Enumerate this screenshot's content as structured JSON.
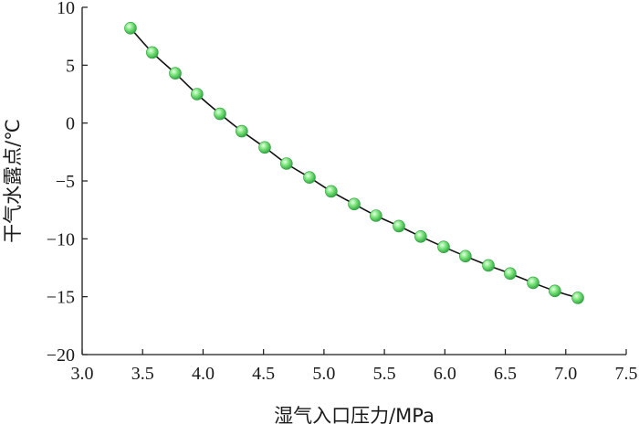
{
  "chart_data": {
    "type": "line",
    "title": "",
    "xlabel": "湿气入口压力/MPa",
    "ylabel": "干气水露点/℃",
    "xlim": [
      3.0,
      7.5
    ],
    "ylim": [
      -20,
      10
    ],
    "xticks": [
      "3.0",
      "3.5",
      "4.0",
      "4.5",
      "5.0",
      "5.5",
      "6.0",
      "6.5",
      "7.0",
      "7.5"
    ],
    "yticks": [
      "10",
      "5",
      "0",
      "−5",
      "−10",
      "−15",
      "−20"
    ],
    "grid": false,
    "marker_color": "#7ee67e",
    "line_color": "#111111",
    "series": [
      {
        "x": [
          3.4,
          3.58,
          3.77,
          3.95,
          4.14,
          4.32,
          4.51,
          4.69,
          4.88,
          5.06,
          5.25,
          5.43,
          5.62,
          5.8,
          5.99,
          6.17,
          6.36,
          6.54,
          6.73,
          6.91,
          7.1
        ],
        "y": [
          8.2,
          6.1,
          4.3,
          2.5,
          0.8,
          -0.7,
          -2.1,
          -3.5,
          -4.7,
          -5.9,
          -7.0,
          -8.0,
          -8.9,
          -9.8,
          -10.7,
          -11.5,
          -12.3,
          -13.0,
          -13.8,
          -14.5,
          -15.1
        ]
      }
    ]
  }
}
